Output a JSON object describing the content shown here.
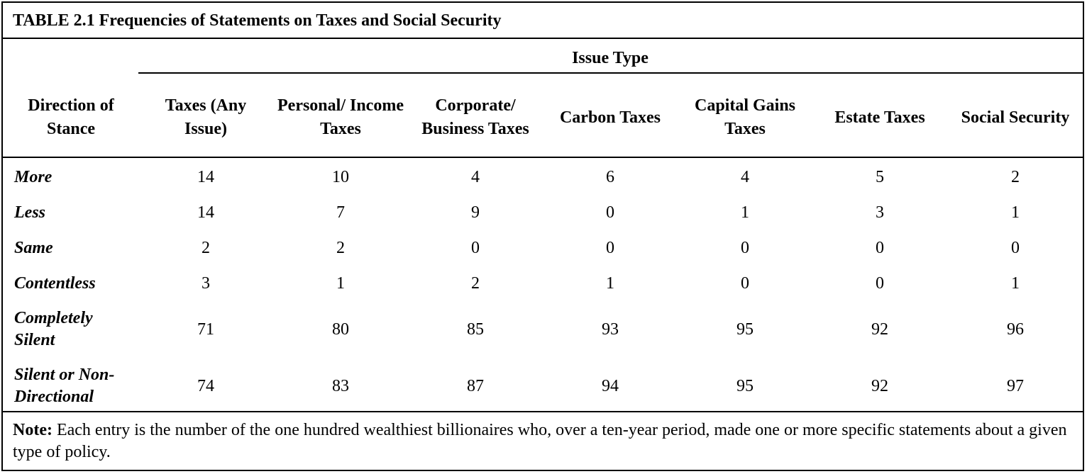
{
  "table": {
    "title": "TABLE 2.1 Frequencies of Statements on Taxes and Social Security",
    "group_header": "Issue Type",
    "stub_header": "Direction of Stance",
    "columns": [
      "Taxes (Any Issue)",
      "Personal/ Income Taxes",
      "Corporate/ Business Taxes",
      "Carbon Taxes",
      "Capital Gains Taxes",
      "Estate Taxes",
      "Social Security"
    ],
    "rows": [
      {
        "label": "More",
        "values": [
          "14",
          "10",
          "4",
          "6",
          "4",
          "5",
          "2"
        ]
      },
      {
        "label": "Less",
        "values": [
          "14",
          "7",
          "9",
          "0",
          "1",
          "3",
          "1"
        ]
      },
      {
        "label": "Same",
        "values": [
          "2",
          "2",
          "0",
          "0",
          "0",
          "0",
          "0"
        ]
      },
      {
        "label": "Contentless",
        "values": [
          "3",
          "1",
          "2",
          "1",
          "0",
          "0",
          "1"
        ]
      },
      {
        "label": "Completely Silent",
        "values": [
          "71",
          "80",
          "85",
          "93",
          "95",
          "92",
          "96"
        ]
      },
      {
        "label": "Silent or Non-Directional",
        "values": [
          "74",
          "83",
          "87",
          "94",
          "95",
          "92",
          "97"
        ]
      }
    ],
    "note_label": "Note:",
    "note_text": " Each entry is the number of the one hundred wealthiest billionaires who, over a ten-year period, made one or more specific statements about a given type of policy."
  }
}
